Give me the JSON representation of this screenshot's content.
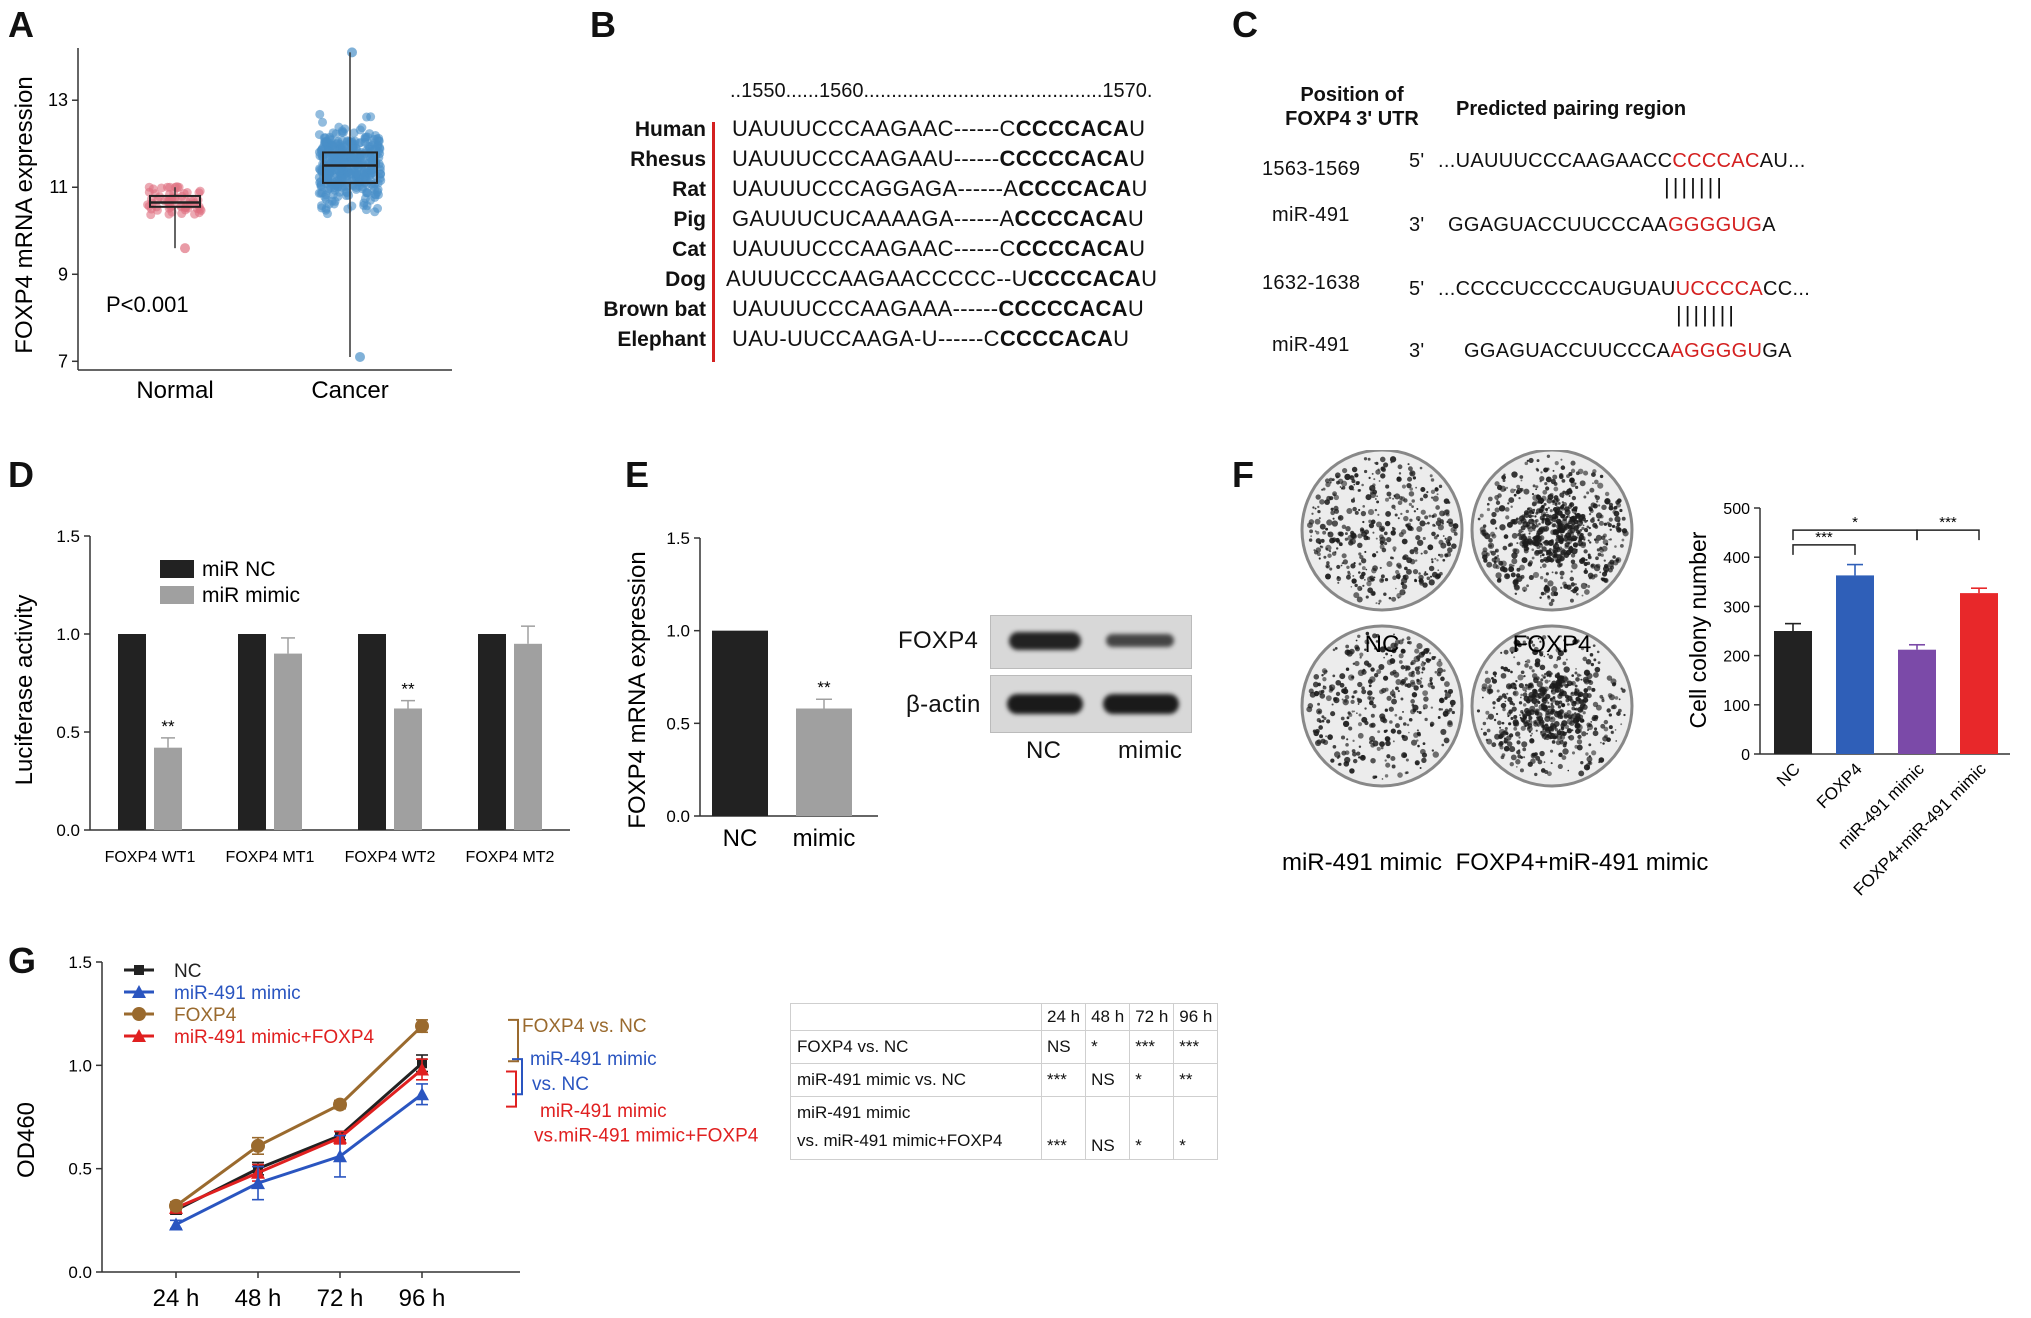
{
  "panels": [
    "A",
    "B",
    "C",
    "D",
    "E",
    "F",
    "G"
  ],
  "panelA": {
    "chart_data": {
      "type": "scatter",
      "categories": [
        "Normal",
        "Cancer"
      ],
      "ylabel": "FOXP4 mRNA expression",
      "yticks": [
        7,
        9,
        11,
        13
      ],
      "ylim": [
        6.8,
        14.2
      ],
      "boxes": [
        {
          "name": "Normal",
          "q1": 10.55,
          "median": 10.65,
          "q3": 10.8,
          "min": 9.6,
          "max": 11.0,
          "color": "#e07080"
        },
        {
          "name": "Cancer",
          "q1": 11.1,
          "median": 11.5,
          "q3": 11.8,
          "min": 7.1,
          "max": 14.1,
          "color": "#4a90c8"
        }
      ],
      "annotation": "P<0.001"
    }
  },
  "panelB": {
    "ruler": "..1550......1560...........................................1570.",
    "species": [
      "Human",
      "Rhesus",
      "Rat",
      "Pig",
      "Cat",
      "Dog",
      "Brown bat",
      "Elephant"
    ],
    "seqs": [
      {
        "plain": "UAUUUCCCAAGAAC------",
        "pre": "C",
        "bold": "CCCCACA",
        "post": "U"
      },
      {
        "plain": "UAUUUCCCAAGAAU------",
        "pre": "",
        "bold": "CCCCCACA",
        "post": "U"
      },
      {
        "plain": "UAUUUCCCAGGAGA------",
        "pre": "A",
        "bold": "CCCCACA",
        "post": "U"
      },
      {
        "plain": "GAUUUCUCAAAAGA------",
        "pre": "A",
        "bold": "CCCCACA",
        "post": "U"
      },
      {
        "plain": "UAUUUCCCAAGAAC------",
        "pre": "C",
        "bold": "CCCCACA",
        "post": "U"
      },
      {
        "plain": "AUUUCCCAAGAACCCCC--",
        "pre": "U",
        "bold": "CCCCACA",
        "post": "U"
      },
      {
        "plain": "UAUUUCCCAAGAAA------",
        "pre": "",
        "bold": "CCCCCACA",
        "post": "U"
      },
      {
        "plain": "UAU-UUCCAAGA-U------",
        "pre": "C",
        "bold": "CCCCACA",
        "post": "U"
      }
    ]
  },
  "panelC": {
    "header1": "Position of",
    "header2": "FOXP4 3' UTR",
    "header3": "Predicted pairing region",
    "site1": {
      "pos": "1563-1569",
      "p5": "5'",
      "utr_pre": "...UAUUUCCCAAGAACC",
      "utr_red": "CCCCAC",
      "utr_post": "AU...",
      "bars": "|||||||",
      "mir": "miR-491",
      "p3": "3'",
      "mir_pre": "GGAGUACCUUCCCAA",
      "mir_red": "GGGGUG",
      "mir_post": "A"
    },
    "site2": {
      "pos": "1632-1638",
      "p5": "5'",
      "utr_pre": "...CCCCUCCCCAUGUAU",
      "utr_red": "UCCCCA",
      "utr_post": "CC...",
      "bars": "|||||||",
      "mir": "miR-491",
      "p3": "3'",
      "mir_pre": "GGAGUACCUUCCCA",
      "mir_red": "AGGGGU",
      "mir_post": "GA"
    }
  },
  "panelD": {
    "chart_data": {
      "type": "bar",
      "categories": [
        "FOXP4 WT1",
        "FOXP4 MT1",
        "FOXP4 WT2",
        "FOXP4 MT2"
      ],
      "series": [
        {
          "name": "miR NC",
          "values": [
            1.0,
            1.0,
            1.0,
            1.0
          ],
          "errors": [
            0,
            0,
            0,
            0
          ],
          "color": "#222222"
        },
        {
          "name": "miR mimic",
          "values": [
            0.42,
            0.9,
            0.62,
            0.95
          ],
          "errors": [
            0.05,
            0.08,
            0.04,
            0.09
          ],
          "color": "#a0a0a0"
        }
      ],
      "sig": [
        "**",
        "",
        "**",
        ""
      ],
      "ylabel": "Luciferase activity",
      "yticks": [
        "0.0",
        "0.5",
        "1.0",
        "1.5"
      ],
      "ylim": [
        0,
        1.5
      ]
    }
  },
  "panelE": {
    "chart_data": {
      "type": "bar",
      "categories": [
        "NC",
        "mimic"
      ],
      "values": [
        1.0,
        0.58
      ],
      "errors": [
        0,
        0.05
      ],
      "colors": [
        "#222222",
        "#a0a0a0"
      ],
      "sig": [
        "",
        "**"
      ],
      "ylabel": "FOXP4 mRNA expression",
      "yticks": [
        "0.0",
        "0.5",
        "1.0",
        "1.5"
      ],
      "ylim": [
        0,
        1.5
      ]
    },
    "blot": {
      "rows": [
        "FOXP4",
        "β-actin"
      ],
      "lanes": [
        "NC",
        "mimic"
      ]
    }
  },
  "panelF": {
    "dishes": [
      "NC",
      "FOXP4",
      "miR-491 mimic",
      "FOXP4+miR-491 mimic"
    ],
    "chart_data": {
      "type": "bar",
      "categories": [
        "NC",
        "FOXP4",
        "miR-491 mimic",
        "FOXP4+miR-491 mimic"
      ],
      "values": [
        250,
        363,
        212,
        327
      ],
      "errors": [
        15,
        22,
        10,
        10
      ],
      "colors": [
        "#222222",
        "#2f5fb8",
        "#7b4aa8",
        "#e8282a"
      ],
      "ylabel": "Cell colony number",
      "yticks": [
        "0",
        "100",
        "200",
        "300",
        "400",
        "500"
      ],
      "ylim": [
        0,
        500
      ],
      "sig": [
        {
          "label": "***",
          "from": 0,
          "to": 1
        },
        {
          "label": "*",
          "from": 0,
          "to": 2
        },
        {
          "label": "***",
          "from": 2,
          "to": 3
        }
      ]
    }
  },
  "panelG": {
    "chart_data": {
      "type": "line",
      "x": [
        "24 h",
        "48 h",
        "72 h",
        "96 h"
      ],
      "series": [
        {
          "name": "NC",
          "values": [
            0.3,
            0.5,
            0.66,
            1.01
          ],
          "errors": [
            0.02,
            0.03,
            0.02,
            0.04
          ],
          "color": "#222222",
          "marker": "square"
        },
        {
          "name": "miR-491 mimic",
          "values": [
            0.23,
            0.43,
            0.56,
            0.86
          ],
          "errors": [
            0.02,
            0.08,
            0.1,
            0.05
          ],
          "color": "#2a55c0",
          "marker": "triangle"
        },
        {
          "name": "FOXP4",
          "values": [
            0.32,
            0.61,
            0.81,
            1.19
          ],
          "errors": [
            0.02,
            0.04,
            0.02,
            0.03
          ],
          "color": "#9a6a2e",
          "marker": "circle"
        },
        {
          "name": "miR-491 mimic+FOXP4",
          "values": [
            0.31,
            0.48,
            0.65,
            0.98
          ],
          "errors": [
            0.02,
            0.04,
            0.03,
            0.05
          ],
          "color": "#e02020",
          "marker": "triangle"
        }
      ],
      "ylabel": "OD460",
      "yticks": [
        "0.0",
        "0.5",
        "1.0",
        "1.5"
      ],
      "ylim": [
        0,
        1.5
      ],
      "annotations": [
        {
          "text": "FOXP4 vs. NC",
          "color": "#9a6a2e"
        },
        {
          "text": "miR-491 mimic",
          "color": "#2a55c0"
        },
        {
          "text": "vs. NC",
          "color": "#2a55c0"
        },
        {
          "text": "miR-491 mimic",
          "color": "#e02020"
        },
        {
          "text": "vs.miR-491 mimic+FOXP4",
          "color": "#e02020"
        }
      ]
    },
    "table": {
      "header": [
        "",
        "24 h",
        "48 h",
        "72 h",
        "96 h"
      ],
      "rows": [
        {
          "label": "FOXP4 vs. NC",
          "label2": "",
          "cells": [
            "NS",
            "*",
            "***",
            "***"
          ]
        },
        {
          "label": "miR-491 mimic vs. NC",
          "label2": "",
          "cells": [
            "***",
            "NS",
            "*",
            "**"
          ]
        },
        {
          "label": "miR-491 mimic",
          "label2": "vs. miR-491 mimic+FOXP4",
          "cells": [
            "***",
            "NS",
            "*",
            "*"
          ]
        }
      ]
    }
  }
}
